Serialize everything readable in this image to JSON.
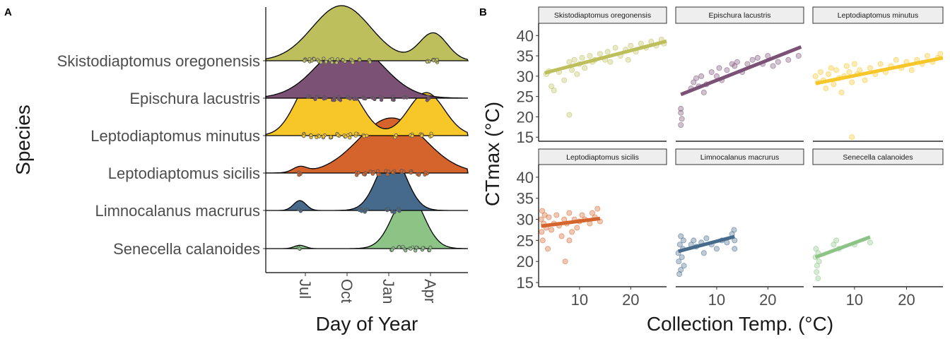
{
  "panel_labels": [
    "A",
    "B"
  ],
  "chart_data": [
    {
      "type": "ridgeline",
      "panel": "A",
      "xlabel": "Day of Year",
      "ylabel": "Species",
      "x_tick_labels": [
        "Jul",
        "Oct",
        "Jan",
        "Apr"
      ],
      "species": [
        {
          "name": "Skistodiaptomus oregonensis",
          "color": "#BDBF5C",
          "density_peaks": [
            {
              "month": 9.6,
              "height": 1.0,
              "width": 2.1
            },
            {
              "month": 16.2,
              "height": 0.5,
              "width": 1.0
            }
          ],
          "sample_months": [
            7.0,
            7.3,
            7.6,
            8.0,
            8.4,
            8.9,
            9.3,
            9.8,
            10.4,
            11.0,
            11.7,
            15.8,
            16.2,
            16.5
          ]
        },
        {
          "name": "Epischura lacustris",
          "color": "#7B5176",
          "density_peaks": [
            {
              "month": 10.2,
              "height": 1.0,
              "width": 2.3
            }
          ],
          "sample_months": [
            7.2,
            7.8,
            8.4,
            9.0,
            9.5,
            10.1,
            10.6,
            11.2,
            11.9,
            12.5,
            13.3,
            14.2,
            15.8
          ]
        },
        {
          "name": "Leptodiaptomus minutus",
          "color": "#F7C629",
          "density_peaks": [
            {
              "month": 7.4,
              "height": 0.9,
              "width": 1.2
            },
            {
              "month": 9.8,
              "height": 0.85,
              "width": 1.3
            },
            {
              "month": 15.7,
              "height": 0.78,
              "width": 1.3
            }
          ],
          "sample_months": [
            7.0,
            7.4,
            7.9,
            8.3,
            8.8,
            9.3,
            9.8,
            10.2,
            10.7,
            11.3,
            13.5,
            14.6,
            15.4,
            16.1
          ]
        },
        {
          "name": "Leptodiaptomus sicilis",
          "color": "#D4632C",
          "density_peaks": [
            {
              "month": 13.2,
              "height": 1.0,
              "width": 2.4
            },
            {
              "month": 6.6,
              "height": 0.1,
              "width": 0.5
            }
          ],
          "sample_months": [
            6.6,
            10.8,
            11.3,
            11.8,
            12.3,
            12.9,
            13.4,
            14.0,
            14.6,
            15.2,
            15.7
          ]
        },
        {
          "name": "Limnocalanus macrurus",
          "color": "#466A8C",
          "density_peaks": [
            {
              "month": 13.2,
              "height": 1.0,
              "width": 1.05
            },
            {
              "month": 6.6,
              "height": 0.18,
              "width": 0.45
            }
          ],
          "sample_months": [
            6.6,
            11.0,
            11.3,
            12.9,
            13.3,
            13.7
          ]
        },
        {
          "name": "Senecella calanoides",
          "color": "#8CC486",
          "density_peaks": [
            {
              "month": 14.4,
              "height": 1.0,
              "width": 1.1
            },
            {
              "month": 6.6,
              "height": 0.06,
              "width": 0.4
            }
          ],
          "sample_months": [
            6.6,
            13.3,
            13.7,
            14.1,
            14.6,
            15.0,
            15.5,
            16.0
          ]
        }
      ]
    },
    {
      "type": "scatter",
      "panel": "B",
      "xlabel": "Collection Temp. (°C)",
      "ylabel": "CTmax (°C)",
      "xlim": [
        2,
        27
      ],
      "ylim": [
        14,
        43
      ],
      "x_ticks": [
        10,
        20
      ],
      "y_ticks": [
        15,
        20,
        25,
        30,
        35,
        40
      ],
      "facets": [
        {
          "name": "Skistodiaptomus oregonensis",
          "color": "#BDBF5C",
          "fit": {
            "x": [
              3.2,
              27.0
            ],
            "y": [
              30.8,
              38.6
            ]
          },
          "points": [
            [
              3.5,
              30.5
            ],
            [
              4,
              31.2
            ],
            [
              4.5,
              27.5
            ],
            [
              5,
              26.5
            ],
            [
              6,
              31
            ],
            [
              7,
              29
            ],
            [
              8,
              33.5
            ],
            [
              8.5,
              31.5
            ],
            [
              9,
              34
            ],
            [
              9.5,
              30.5
            ],
            [
              10,
              33
            ],
            [
              10.5,
              34.5
            ],
            [
              11,
              32
            ],
            [
              12,
              35
            ],
            [
              12.5,
              33.5
            ],
            [
              13,
              34
            ],
            [
              14,
              35.5
            ],
            [
              15,
              34
            ],
            [
              15.5,
              36
            ],
            [
              16,
              33.5
            ],
            [
              17,
              37
            ],
            [
              18,
              35
            ],
            [
              19,
              36.5
            ],
            [
              19.5,
              34
            ],
            [
              20,
              37.5
            ],
            [
              21,
              36
            ],
            [
              22,
              38
            ],
            [
              23,
              37
            ],
            [
              24,
              38.5
            ],
            [
              25,
              37.5
            ],
            [
              26,
              39
            ],
            [
              26.5,
              38
            ],
            [
              8,
              20.5
            ]
          ]
        },
        {
          "name": "Epischura lacustris",
          "color": "#7B5176",
          "fit": {
            "x": [
              3.0,
              26.5
            ],
            "y": [
              25.5,
              37.2
            ]
          },
          "points": [
            [
              3,
              22
            ],
            [
              3,
              21
            ],
            [
              3,
              18
            ],
            [
              3.2,
              19.5
            ],
            [
              5,
              27
            ],
            [
              5.5,
              28.5
            ],
            [
              6,
              29.5
            ],
            [
              6.5,
              27.5
            ],
            [
              7,
              30
            ],
            [
              7.5,
              26
            ],
            [
              8,
              28
            ],
            [
              9,
              31
            ],
            [
              10,
              30
            ],
            [
              10.5,
              32
            ],
            [
              11,
              29
            ],
            [
              12,
              31.5
            ],
            [
              13,
              33
            ],
            [
              13.5,
              32.5
            ],
            [
              14,
              33.5
            ],
            [
              15,
              31
            ],
            [
              16,
              33
            ],
            [
              17,
              34
            ],
            [
              18,
              34.5
            ],
            [
              19,
              33
            ],
            [
              20,
              35
            ],
            [
              21,
              32.5
            ],
            [
              22,
              33.5
            ],
            [
              24,
              34
            ],
            [
              26,
              35
            ]
          ]
        },
        {
          "name": "Leptodiaptomus minutus",
          "color": "#F7C629",
          "fit": {
            "x": [
              2.5,
              27.0
            ],
            "y": [
              28.2,
              34.5
            ]
          },
          "points": [
            [
              2.5,
              30
            ],
            [
              3,
              28.5
            ],
            [
              3.5,
              31
            ],
            [
              4,
              29
            ],
            [
              4.5,
              27
            ],
            [
              5,
              30.5
            ],
            [
              5.5,
              32
            ],
            [
              6,
              28
            ],
            [
              6.5,
              31.5
            ],
            [
              7,
              29.5
            ],
            [
              7.5,
              26
            ],
            [
              8,
              30
            ],
            [
              8.5,
              32.5
            ],
            [
              9,
              31
            ],
            [
              9.5,
              28.5
            ],
            [
              10,
              33
            ],
            [
              10.5,
              30.5
            ],
            [
              11,
              31.5
            ],
            [
              12,
              29
            ],
            [
              13,
              32
            ],
            [
              14,
              30.5
            ],
            [
              15,
              33
            ],
            [
              16,
              31
            ],
            [
              17,
              32.5
            ],
            [
              18,
              34
            ],
            [
              19,
              32
            ],
            [
              20,
              33.5
            ],
            [
              21,
              31.5
            ],
            [
              22,
              34
            ],
            [
              23,
              33
            ],
            [
              24,
              35
            ],
            [
              25,
              33.5
            ],
            [
              26,
              34.5
            ],
            [
              26.5,
              35.5
            ],
            [
              9.5,
              15
            ]
          ]
        },
        {
          "name": "Leptodiaptomus sicilis",
          "color": "#D4632C",
          "fit": {
            "x": [
              2.5,
              14.0
            ],
            "y": [
              28.4,
              30.2
            ]
          },
          "points": [
            [
              2.5,
              30
            ],
            [
              2.6,
              27
            ],
            [
              2.7,
              32
            ],
            [
              2.8,
              25
            ],
            [
              3,
              29
            ],
            [
              3.2,
              31
            ],
            [
              3.5,
              28
            ],
            [
              3.8,
              23
            ],
            [
              4,
              30.5
            ],
            [
              4.5,
              27.5
            ],
            [
              5,
              29
            ],
            [
              5.5,
              31
            ],
            [
              6,
              28.5
            ],
            [
              6.5,
              26
            ],
            [
              7,
              30
            ],
            [
              7.2,
              20
            ],
            [
              7.5,
              29
            ],
            [
              8,
              31.5
            ],
            [
              8.5,
              27
            ],
            [
              9,
              30
            ],
            [
              9.5,
              28
            ],
            [
              10,
              29.5
            ],
            [
              10.5,
              31
            ],
            [
              11,
              30
            ],
            [
              12,
              29
            ],
            [
              12.5,
              31.5
            ],
            [
              13,
              30.5
            ],
            [
              13.5,
              32.5
            ],
            [
              14,
              29.5
            ],
            [
              8,
              25
            ]
          ]
        },
        {
          "name": "Limnocalanus macrurus",
          "color": "#466A8C",
          "fit": {
            "x": [
              2.5,
              13.5
            ],
            "y": [
              22.4,
              25.9
            ]
          },
          "points": [
            [
              2.5,
              22
            ],
            [
              2.6,
              20
            ],
            [
              2.7,
              17
            ],
            [
              2.8,
              24
            ],
            [
              3,
              26
            ],
            [
              3,
              18
            ],
            [
              3.2,
              21
            ],
            [
              3.4,
              23
            ],
            [
              3.5,
              25
            ],
            [
              3.6,
              19
            ],
            [
              5,
              24
            ],
            [
              5.5,
              25
            ],
            [
              6,
              23.5
            ],
            [
              7,
              24.5
            ],
            [
              7.5,
              22
            ],
            [
              8,
              25.5
            ],
            [
              9,
              24
            ],
            [
              10,
              23
            ],
            [
              11,
              25
            ],
            [
              12,
              24.5
            ],
            [
              13,
              26.5
            ],
            [
              13.5,
              25
            ],
            [
              13.4,
              27.5
            ],
            [
              13.5,
              23
            ]
          ]
        },
        {
          "name": "Senecella calanoides",
          "color": "#8CC486",
          "fit": {
            "x": [
              2.5,
              13.0
            ],
            "y": [
              21.0,
              25.8
            ]
          },
          "points": [
            [
              2.5,
              21
            ],
            [
              2.6,
              23
            ],
            [
              2.7,
              17.5
            ],
            [
              2.8,
              19
            ],
            [
              3,
              22
            ],
            [
              3,
              16
            ],
            [
              3.2,
              20
            ],
            [
              6,
              24
            ],
            [
              6.5,
              25
            ],
            [
              7,
              23
            ],
            [
              10,
              24
            ],
            [
              13,
              24.5
            ]
          ]
        }
      ]
    }
  ]
}
